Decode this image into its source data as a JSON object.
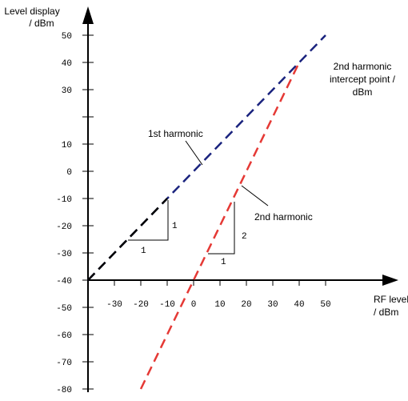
{
  "chart_data": {
    "type": "line",
    "xlabel": [
      "RF level",
      "/ dBm"
    ],
    "ylabel": [
      "Level display",
      "/ dBm"
    ],
    "x_ticks": [
      -30,
      -20,
      -10,
      0,
      10,
      20,
      30,
      40,
      50
    ],
    "y_ticks": [
      50,
      40,
      30,
      10,
      0,
      -10,
      -20,
      -30,
      -40,
      -50,
      -60,
      -70,
      -80
    ],
    "x_range": [
      -40,
      50
    ],
    "y_range": [
      -85,
      55
    ],
    "colors": {
      "first": "#1a237e",
      "second": "#e53935",
      "axis": "#000000"
    },
    "series": [
      {
        "name": "1st harmonic",
        "style": "dashed",
        "points": [
          [
            -40,
            -40
          ],
          [
            -10,
            -10
          ],
          [
            50,
            50
          ]
        ]
      },
      {
        "name": "2nd harmonic",
        "style": "dashed",
        "points": [
          [
            -20,
            -80
          ],
          [
            15,
            -10
          ],
          [
            40,
            40
          ]
        ]
      }
    ],
    "annotations": {
      "first_harmonic": "1st harmonic",
      "second_harmonic": "2nd harmonic",
      "intercept": [
        "2nd harmonic",
        "intercept point /",
        "dBm"
      ],
      "slope1_vertical": "1",
      "slope1_horizontal": "1",
      "slope2_vertical": "2",
      "slope2_horizontal": "1"
    }
  }
}
